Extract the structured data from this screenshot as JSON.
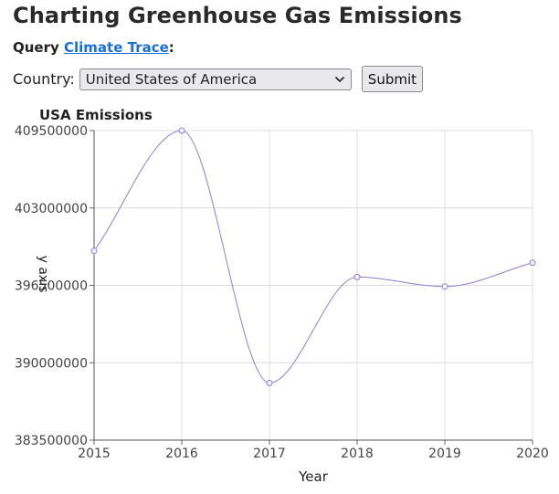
{
  "page": {
    "title": "Charting Greenhouse Gas Emissions",
    "query_prefix": "Query ",
    "query_link": "Climate Trace",
    "query_suffix": ":"
  },
  "form": {
    "country_label": "Country:",
    "country_selected": "United States of America",
    "submit_label": "Submit"
  },
  "chart_data": {
    "type": "line",
    "title": "USA Emissions",
    "xlabel": "Year",
    "ylabel": "y axis",
    "x": [
      2015,
      2016,
      2017,
      2018,
      2019,
      2020
    ],
    "series": [
      {
        "values": [
          399400000,
          409500000,
          388300000,
          397200000,
          396400000,
          398400000
        ]
      }
    ],
    "xlim": [
      2015,
      2020
    ],
    "ylim": [
      383500000,
      409500000
    ],
    "yticks": [
      383500000,
      390000000,
      396500000,
      403000000,
      409500000
    ],
    "grid": true,
    "line_color": "#8a7fd6"
  }
}
